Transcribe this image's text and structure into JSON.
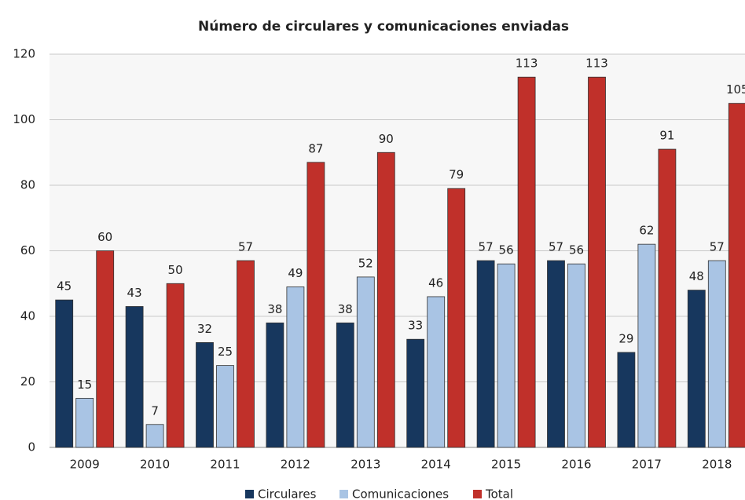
{
  "chart_data": {
    "type": "bar",
    "title": "Número de circulares y comunicaciones  enviadas",
    "categories": [
      "2009",
      "2010",
      "2011",
      "2012",
      "2013",
      "2014",
      "2015",
      "2016",
      "2017",
      "2018"
    ],
    "series": [
      {
        "name": "Circulares",
        "color": "#17375e",
        "values": [
          45,
          43,
          32,
          38,
          38,
          33,
          57,
          57,
          29,
          48
        ]
      },
      {
        "name": "Comunicaciones",
        "color": "#a9c4e4",
        "values": [
          15,
          7,
          25,
          49,
          52,
          46,
          56,
          56,
          62,
          57
        ]
      },
      {
        "name": "Total",
        "color": "#c0302a",
        "values": [
          60,
          50,
          57,
          87,
          90,
          79,
          113,
          113,
          91,
          105
        ]
      }
    ],
    "ylim": [
      0,
      120
    ],
    "yticks": [
      0,
      20,
      40,
      60,
      80,
      100,
      120
    ],
    "grid": true,
    "legend": "bottom"
  }
}
